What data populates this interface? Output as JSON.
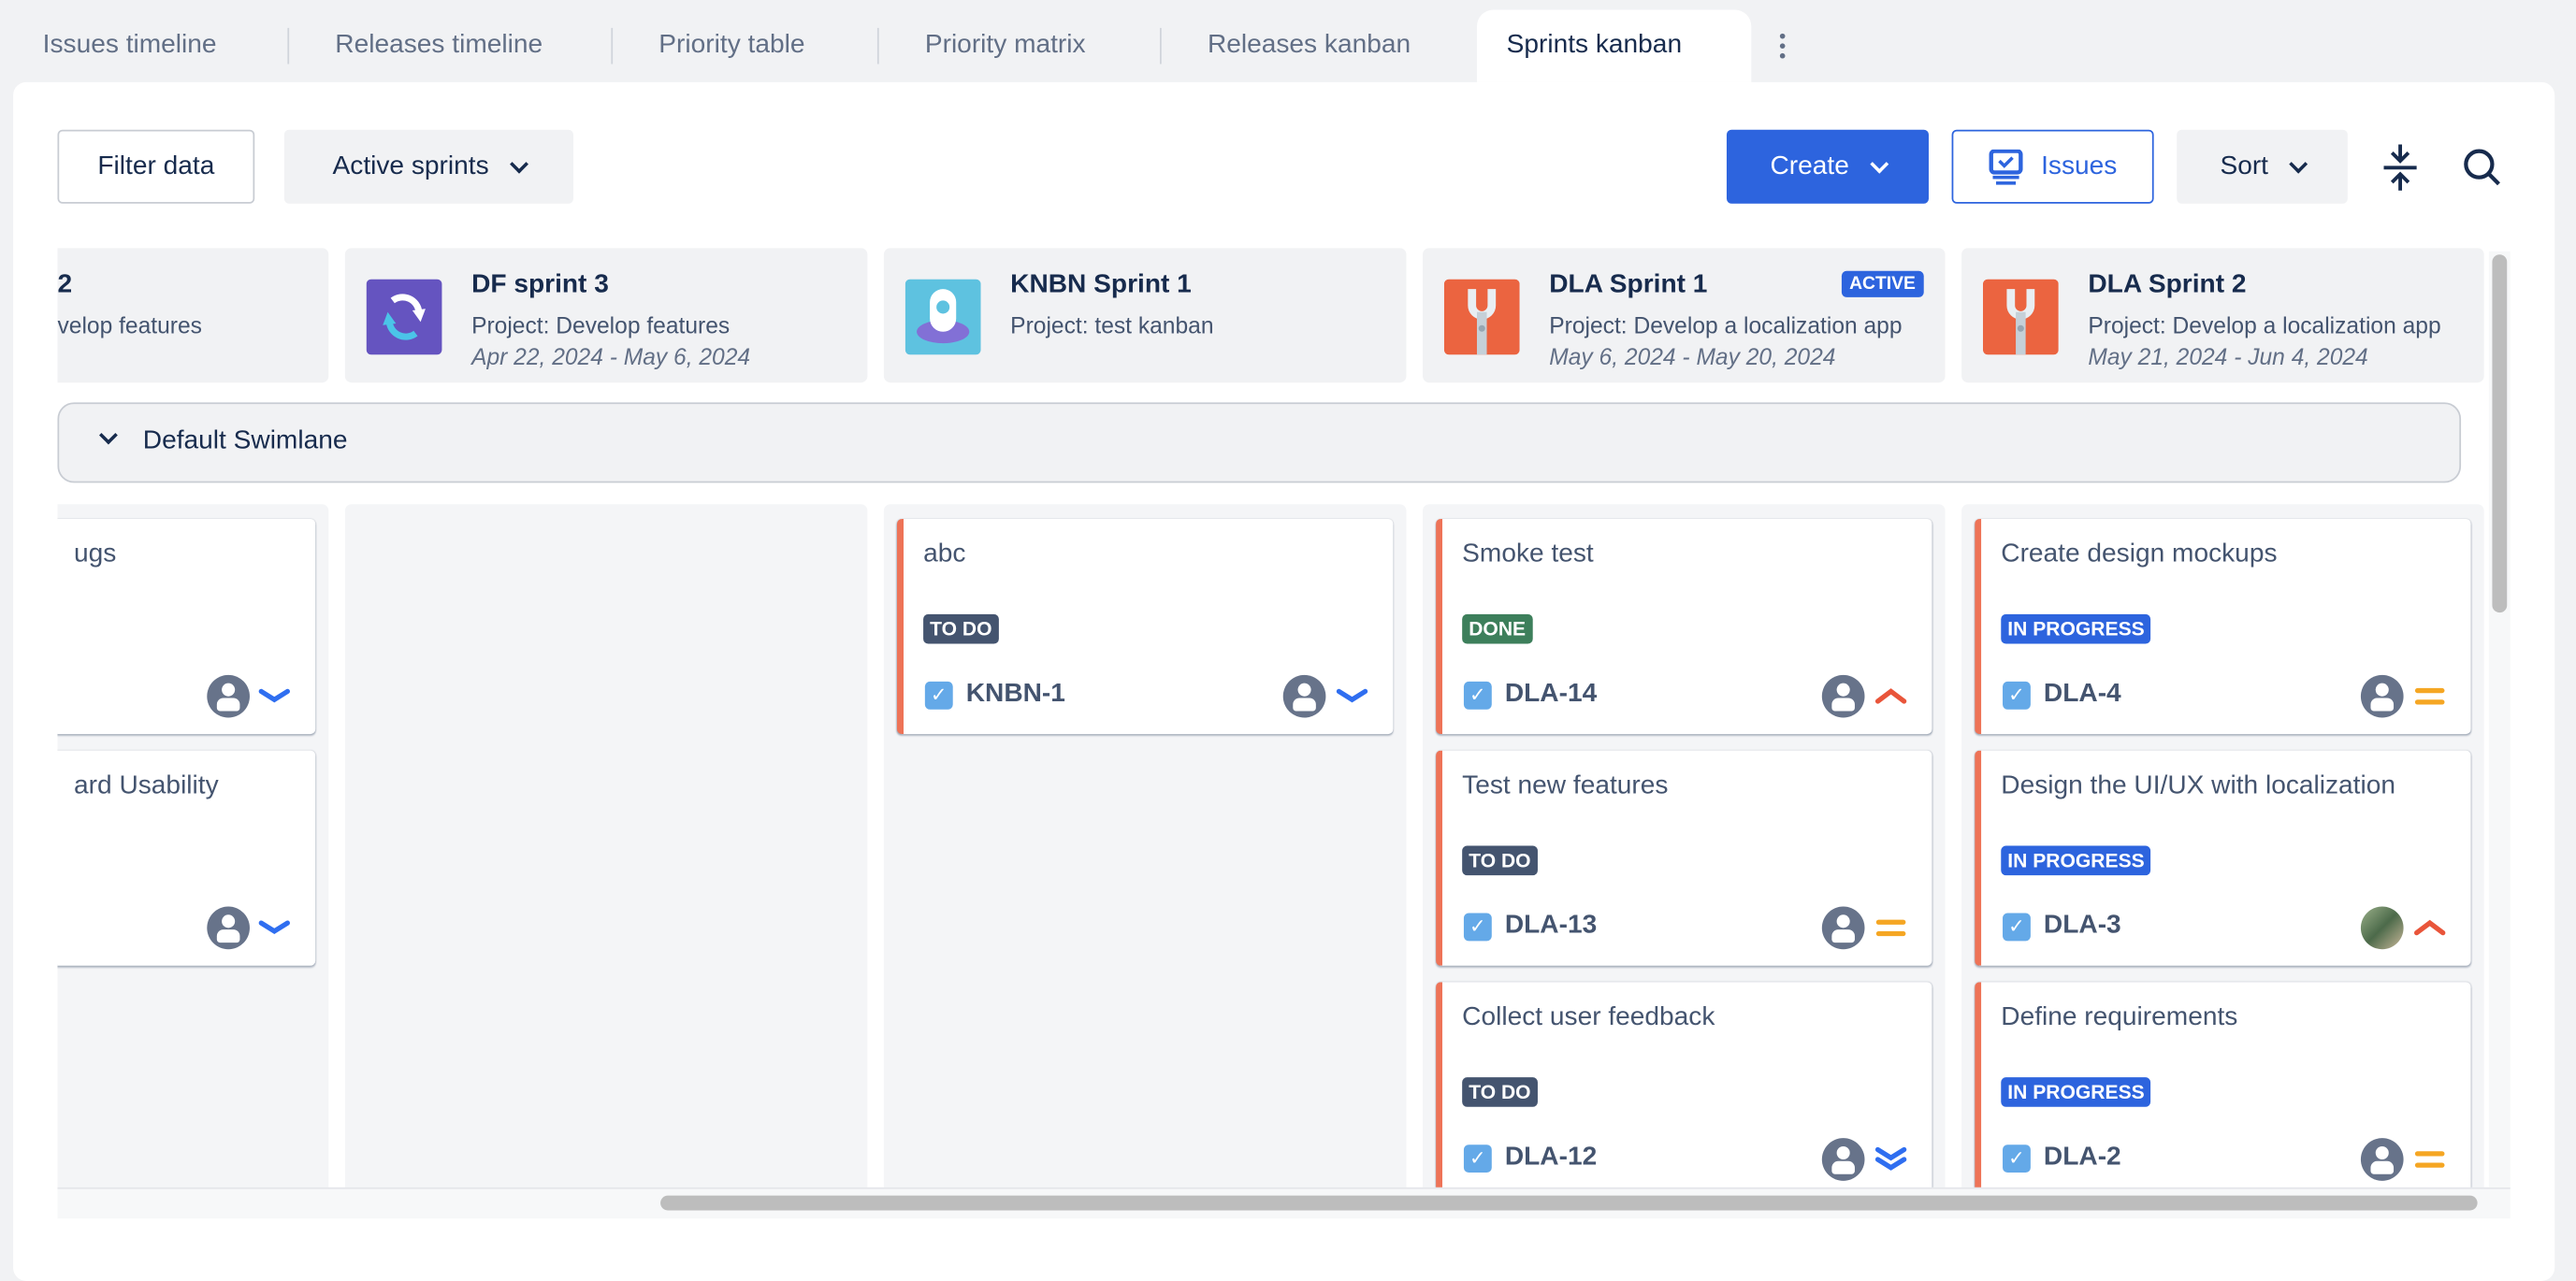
{
  "tabs": [
    {
      "label": "Issues timeline"
    },
    {
      "label": "Releases timeline"
    },
    {
      "label": "Priority table"
    },
    {
      "label": "Priority matrix"
    },
    {
      "label": "Releases kanban"
    },
    {
      "label": "Sprints kanban",
      "active": true
    }
  ],
  "toolbar": {
    "filter_label": "Filter data",
    "sprints_select": "Active sprints",
    "create_label": "Create",
    "issues_label": "Issues",
    "sort_label": "Sort"
  },
  "colors": {
    "accent": "#2d64de",
    "todo": "#44546f",
    "done": "#3d7f5b",
    "in_progress": "#2d64de",
    "card_stripe": "#ee7357"
  },
  "swimlane": {
    "label": "Default Swimlane"
  },
  "columns": [
    {
      "title": "2",
      "project": "velop features",
      "dates": "",
      "icon": "partial",
      "partial": true,
      "cards": [
        {
          "title": "ugs",
          "status": "",
          "key": "",
          "avatar": "default",
          "priority": "low"
        },
        {
          "title": "ard Usability",
          "status": "",
          "key": "",
          "avatar": "default",
          "priority": "low"
        }
      ]
    },
    {
      "title": "DF sprint 3",
      "project": "Project: Develop features",
      "dates": "Apr 22, 2024 - May 6, 2024",
      "icon": "sync-icon",
      "cards": []
    },
    {
      "title": "KNBN Sprint 1",
      "project": "Project: test kanban",
      "dates": "",
      "icon": "robot-icon",
      "cards": [
        {
          "title": "abc",
          "status": "TO DO",
          "key": "KNBN-1",
          "avatar": "default",
          "priority": "low"
        }
      ]
    },
    {
      "title": "DLA Sprint 1",
      "project": "Project: Develop a localization app",
      "dates": "May 6, 2024 - May 20, 2024",
      "icon": "wrench-icon",
      "badge": "ACTIVE",
      "cards": [
        {
          "title": "Smoke test",
          "status": "DONE",
          "key": "DLA-14",
          "avatar": "default",
          "priority": "high"
        },
        {
          "title": "Test new features",
          "status": "TO DO",
          "key": "DLA-13",
          "avatar": "default",
          "priority": "medium"
        },
        {
          "title": "Collect user feedback",
          "status": "TO DO",
          "key": "DLA-12",
          "avatar": "default",
          "priority": "lowest"
        }
      ]
    },
    {
      "title": "DLA Sprint 2",
      "project": "Project: Develop a localization app",
      "dates": "May 21, 2024 - Jun 4, 2024",
      "icon": "wrench-icon",
      "cards": [
        {
          "title": "Create design mockups",
          "status": "IN PROGRESS",
          "key": "DLA-4",
          "avatar": "default",
          "priority": "medium"
        },
        {
          "title": "Design the UI/UX with localization",
          "status": "IN PROGRESS",
          "key": "DLA-3",
          "avatar": "photo",
          "priority": "high"
        },
        {
          "title": "Define requirements",
          "status": "IN PROGRESS",
          "key": "DLA-2",
          "avatar": "default",
          "priority": "medium"
        }
      ]
    }
  ]
}
